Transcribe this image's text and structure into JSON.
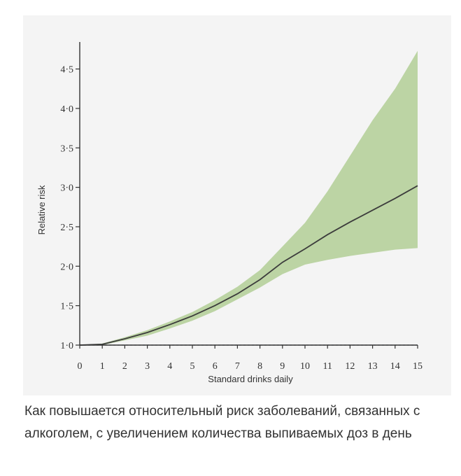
{
  "colors": {
    "line": "#3c3c3c",
    "band": "#bcd4a4",
    "axis": "#333333",
    "reference": "#7a7f9a"
  },
  "caption": "Как повышается относительный риск заболеваний, связанных с алкоголем, с увеличением количества выпиваемых доз в день",
  "chart_data": {
    "type": "line",
    "xlabel": "Standard drinks daily",
    "ylabel": "Relative risk",
    "xlim": [
      0,
      15
    ],
    "ylim": [
      1.0,
      4.75
    ],
    "x_ticks": [
      "0",
      "1",
      "2",
      "3",
      "4",
      "5",
      "6",
      "7",
      "8",
      "9",
      "10",
      "11",
      "12",
      "13",
      "14",
      "15"
    ],
    "y_ticks": [
      "1·0",
      "1·5",
      "2·0",
      "2·5",
      "3·0",
      "3·5",
      "4·0",
      "4·5"
    ],
    "reference_line": 1.0,
    "grid": false,
    "series": [
      {
        "x": [
          0,
          1,
          2,
          3,
          4,
          5,
          6,
          7,
          8,
          9,
          10,
          11,
          12,
          13,
          14,
          15
        ],
        "values": [
          1.0,
          1.01,
          1.08,
          1.16,
          1.26,
          1.37,
          1.5,
          1.65,
          1.83,
          2.05,
          2.22,
          2.4,
          2.56,
          2.71,
          2.86,
          3.02
        ],
        "lower": [
          1.0,
          1.0,
          1.06,
          1.12,
          1.21,
          1.31,
          1.43,
          1.58,
          1.73,
          1.9,
          2.02,
          2.08,
          2.13,
          2.17,
          2.21,
          2.23
        ],
        "upper": [
          1.0,
          1.02,
          1.1,
          1.19,
          1.3,
          1.42,
          1.57,
          1.74,
          1.95,
          2.25,
          2.55,
          2.95,
          3.4,
          3.85,
          4.25,
          4.73
        ]
      }
    ]
  }
}
